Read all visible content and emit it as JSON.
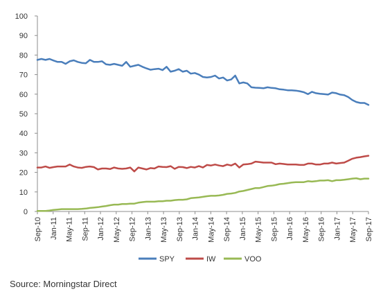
{
  "chart_data": {
    "type": "line",
    "x_tick_labels": [
      "Sep-10",
      "Jan-11",
      "May-11",
      "Sep-11",
      "Jan-12",
      "May-12",
      "Sep-12",
      "Jan-13",
      "May-13",
      "Sep-13",
      "Jan-14",
      "May-14",
      "Sep-14",
      "Jan-15",
      "May-15",
      "Sep-15",
      "Jan-16",
      "May-16",
      "Sep-16",
      "Jan-17",
      "May-17",
      "Sep-17"
    ],
    "y_ticks": [
      0,
      10,
      20,
      30,
      40,
      50,
      60,
      70,
      80,
      90,
      100
    ],
    "ylim": [
      0,
      100
    ],
    "grid": false,
    "legend_position": "bottom",
    "series": [
      {
        "name": "SPY",
        "color": "#4a7ebb",
        "values": [
          77.5,
          78,
          77.5,
          78,
          77.2,
          76.5,
          76.5,
          75.5,
          76.8,
          77.3,
          76.5,
          76,
          75.8,
          77.5,
          76.5,
          76.5,
          76.8,
          75.3,
          75,
          75.5,
          75,
          74.5,
          76.5,
          74,
          74.5,
          75,
          74,
          73.2,
          72.5,
          72.8,
          73,
          72.3,
          74,
          71.5,
          72,
          72.8,
          71.5,
          72,
          70.5,
          70.8,
          70,
          68.8,
          68.5,
          68.8,
          69.5,
          68,
          68.5,
          67,
          67.5,
          69.5,
          65.5,
          66,
          65.5,
          63.5,
          63.3,
          63.2,
          63,
          63.5,
          63.2,
          63,
          62.5,
          62.3,
          62,
          62,
          61.8,
          61.5,
          61,
          60,
          61.2,
          60.5,
          60.2,
          60,
          59.8,
          60.8,
          60.5,
          59.8,
          59.5,
          58.5,
          57,
          56,
          55.5,
          55.5,
          54.5
        ]
      },
      {
        "name": "IW",
        "color": "#be4b48",
        "values": [
          22.5,
          22.5,
          23,
          22.3,
          22.7,
          23,
          23,
          23,
          24,
          23,
          22.5,
          22.3,
          22.8,
          23,
          22.7,
          21.5,
          22,
          22,
          21.7,
          22.5,
          22,
          21.8,
          22,
          22.5,
          20.5,
          22.5,
          22,
          21.5,
          22.2,
          22,
          23,
          22.8,
          22.7,
          23.2,
          21.8,
          22.8,
          22.7,
          22.2,
          22.8,
          22.5,
          23.2,
          22.5,
          23.8,
          23.5,
          24,
          23.5,
          23.2,
          24,
          23.5,
          24.5,
          22.5,
          24,
          24.2,
          24.5,
          25.5,
          25.3,
          25,
          25,
          25,
          24.2,
          24.5,
          24.3,
          24,
          24,
          24,
          23.8,
          23.8,
          24.5,
          24.5,
          24,
          24,
          24.5,
          24.5,
          25,
          24.5,
          24.8,
          25,
          26,
          27,
          27.5,
          27.8,
          28.2,
          28.5
        ]
      },
      {
        "name": "VOO",
        "color": "#98b954",
        "values": [
          0.3,
          0.3,
          0.3,
          0.5,
          0.8,
          1,
          1.2,
          1.2,
          1.2,
          1.2,
          1.2,
          1.3,
          1.5,
          1.8,
          2,
          2.2,
          2.5,
          2.8,
          3.2,
          3.5,
          3.5,
          3.8,
          3.8,
          4,
          4,
          4.5,
          4.8,
          5,
          5,
          5,
          5.2,
          5.2,
          5.5,
          5.5,
          5.8,
          6,
          6,
          6.2,
          6.8,
          7,
          7.2,
          7.5,
          7.8,
          8,
          8,
          8.2,
          8.5,
          9,
          9.2,
          9.5,
          10.2,
          10.5,
          11,
          11.5,
          12,
          12,
          12.5,
          13,
          13.2,
          13.5,
          14,
          14.2,
          14.5,
          14.8,
          15,
          15,
          15,
          15.5,
          15.3,
          15.5,
          15.8,
          15.8,
          16,
          15.5,
          16,
          16,
          16.2,
          16.5,
          16.8,
          17,
          16.5,
          16.8,
          16.8
        ]
      }
    ]
  },
  "source_text": "Source: Morningstar Direct"
}
